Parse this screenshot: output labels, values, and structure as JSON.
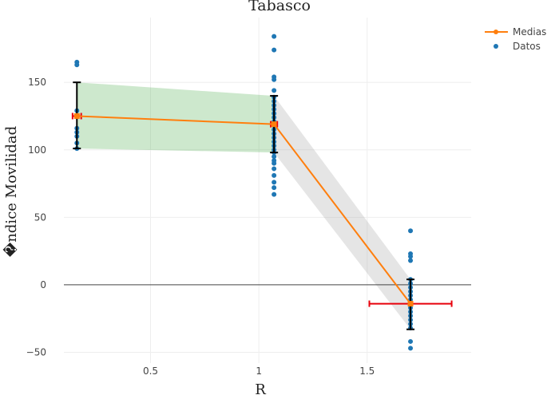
{
  "chart_data": {
    "type": "scatter",
    "title": "Tabasco",
    "xlabel": "R",
    "ylabel": "�ndice Movilidad",
    "xlim": [
      0.1,
      1.98
    ],
    "ylim": [
      -58,
      198
    ],
    "xticks": [
      0.5,
      1,
      1.5
    ],
    "yticks": [
      -50,
      0,
      50,
      100,
      150
    ],
    "xtick_labels": [
      "0.5",
      "1",
      "1.5"
    ],
    "ytick_labels": [
      "−50",
      "0",
      "50",
      "100",
      "150"
    ],
    "grid": true,
    "legend_position": "top-right",
    "colors": {
      "means": "#ff7f0e",
      "data": "#1f77b4",
      "band_green": "#2ca02c",
      "band_gray": "#999999",
      "y_error": "#000000",
      "x_error": "#e8000b",
      "zero_line": "#444444",
      "grid": "#eeeeee"
    },
    "series": [
      {
        "name": "Medias",
        "kind": "line+markers",
        "x": [
          0.16,
          1.07,
          1.7
        ],
        "y": [
          125,
          119,
          -14
        ]
      },
      {
        "name": "Datos",
        "kind": "markers",
        "points": [
          [
            0.16,
            165
          ],
          [
            0.16,
            163
          ],
          [
            0.16,
            129
          ],
          [
            0.16,
            116
          ],
          [
            0.16,
            113
          ],
          [
            0.16,
            110
          ],
          [
            0.16,
            105
          ],
          [
            0.16,
            101
          ],
          [
            1.07,
            184
          ],
          [
            1.07,
            174
          ],
          [
            1.07,
            154
          ],
          [
            1.07,
            152
          ],
          [
            1.07,
            144
          ],
          [
            1.07,
            139
          ],
          [
            1.07,
            136
          ],
          [
            1.07,
            133
          ],
          [
            1.07,
            130
          ],
          [
            1.07,
            127
          ],
          [
            1.07,
            124
          ],
          [
            1.07,
            121
          ],
          [
            1.07,
            118
          ],
          [
            1.07,
            115
          ],
          [
            1.07,
            112
          ],
          [
            1.07,
            109
          ],
          [
            1.07,
            106
          ],
          [
            1.07,
            103
          ],
          [
            1.07,
            100
          ],
          [
            1.07,
            98
          ],
          [
            1.07,
            95
          ],
          [
            1.07,
            92
          ],
          [
            1.07,
            90
          ],
          [
            1.07,
            86
          ],
          [
            1.07,
            81
          ],
          [
            1.07,
            76
          ],
          [
            1.07,
            72
          ],
          [
            1.07,
            67
          ],
          [
            1.7,
            40
          ],
          [
            1.7,
            23
          ],
          [
            1.7,
            21
          ],
          [
            1.7,
            18
          ],
          [
            1.7,
            4
          ],
          [
            1.7,
            1
          ],
          [
            1.7,
            -2
          ],
          [
            1.7,
            -5
          ],
          [
            1.7,
            -8
          ],
          [
            1.7,
            -11
          ],
          [
            1.7,
            -14
          ],
          [
            1.7,
            -17
          ],
          [
            1.7,
            -20
          ],
          [
            1.7,
            -23
          ],
          [
            1.7,
            -26
          ],
          [
            1.7,
            -29
          ],
          [
            1.7,
            -32
          ],
          [
            1.7,
            -42
          ],
          [
            1.7,
            -47
          ]
        ]
      }
    ],
    "y_error_bars": [
      {
        "x": 0.16,
        "low": 101,
        "high": 150
      },
      {
        "x": 1.07,
        "low": 98,
        "high": 140
      },
      {
        "x": 1.7,
        "low": -33,
        "high": 4
      }
    ],
    "x_error_bars": [
      {
        "y": 125,
        "low": 0.14,
        "high": 0.18
      },
      {
        "y": 119,
        "low": 1.055,
        "high": 1.085
      },
      {
        "y": -14,
        "low": 1.51,
        "high": 1.89
      }
    ],
    "bands": [
      {
        "color": "green",
        "x": [
          0.16,
          1.07
        ],
        "upper": [
          150,
          140
        ],
        "lower": [
          101,
          98
        ]
      },
      {
        "color": "gray",
        "x": [
          1.07,
          1.7
        ],
        "upper": [
          140,
          4
        ],
        "lower": [
          98,
          -33
        ]
      }
    ]
  }
}
